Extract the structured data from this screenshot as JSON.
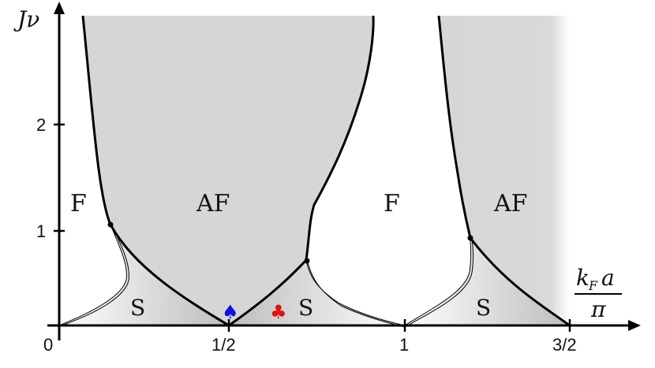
{
  "diagram": {
    "regions": {
      "F_left": "F",
      "AF_center": "AF",
      "F_middle": "F",
      "AF_right": "AF",
      "S1": "S",
      "S2": "S",
      "S3": "S"
    },
    "axes": {
      "y_label": "Jν",
      "x_label_numerator": "k",
      "x_label_sub": "F",
      "x_label_a": "a",
      "x_label_denominator": "π"
    },
    "x_ticks": [
      "0",
      "1/2",
      "1",
      "3/2"
    ],
    "y_ticks": [
      "1",
      "2"
    ],
    "markers": {
      "spade": "♠",
      "club": "♣"
    },
    "colors": {
      "af_fill": "#d6d6d6",
      "spade": "#1010e0",
      "club": "#e01010",
      "line": "#000000"
    }
  }
}
